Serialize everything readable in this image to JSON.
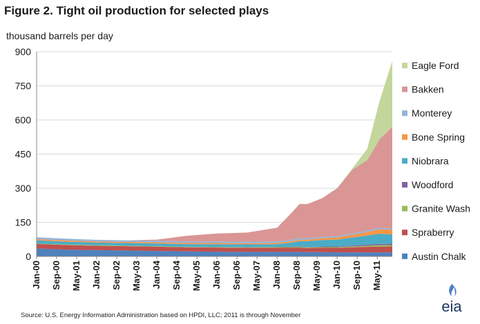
{
  "header": {
    "title": "Figure 2.  Tight oil production for selected plays",
    "yunit": "thousand barrels per day"
  },
  "footer": {
    "source": "Source:  U.S. Energy Information Administration based on HPDI, LLC; 2011 is through November",
    "logo_text": "eia"
  },
  "chart_data": {
    "type": "area",
    "stacked": true,
    "title": "Figure 2.  Tight oil production for selected plays",
    "xlabel": "",
    "ylabel": "thousand barrels per day",
    "ylim": [
      0,
      900
    ],
    "yticks": [
      0,
      150,
      300,
      450,
      600,
      750,
      900
    ],
    "xlim": [
      "2000-01",
      "2011-11"
    ],
    "xticks": [
      "Jan-00",
      "Sep-00",
      "May-01",
      "Jan-02",
      "Sep-02",
      "May-03",
      "Jan-04",
      "Sep-04",
      "May-05",
      "Jan-06",
      "Sep-06",
      "May-07",
      "Jan-08",
      "Sep-08",
      "May-09",
      "Jan-10",
      "Sep-10",
      "May-11"
    ],
    "grid": "horizontal",
    "legend_position": "right",
    "x": [
      "2000-01",
      "2001-01",
      "2002-01",
      "2003-01",
      "2004-01",
      "2005-01",
      "2006-01",
      "2007-01",
      "2008-01",
      "2008-07",
      "2008-10",
      "2009-01",
      "2009-07",
      "2010-01",
      "2010-07",
      "2011-01",
      "2011-06",
      "2011-11"
    ],
    "series": [
      {
        "name": "Austin Chalk",
        "color": "#4f81bd",
        "values": [
          35,
          30,
          28,
          26,
          24,
          22,
          21,
          20,
          20,
          20,
          20,
          19,
          19,
          18,
          18,
          18,
          18,
          18
        ]
      },
      {
        "name": "Spraberry",
        "color": "#c0504d",
        "values": [
          20,
          20,
          19,
          19,
          19,
          18,
          18,
          18,
          18,
          18,
          18,
          18,
          19,
          20,
          22,
          24,
          25,
          26
        ]
      },
      {
        "name": "Granite Wash",
        "color": "#9bbb59",
        "values": [
          2,
          2,
          2,
          2,
          2,
          2,
          2,
          2,
          3,
          3,
          3,
          3,
          3,
          3,
          4,
          5,
          6,
          6
        ]
      },
      {
        "name": "Woodford",
        "color": "#8064a2",
        "values": [
          0,
          0,
          0,
          0,
          0,
          0,
          1,
          1,
          1,
          2,
          2,
          2,
          3,
          3,
          4,
          5,
          6,
          6
        ]
      },
      {
        "name": "Niobrara",
        "color": "#4bacc6",
        "values": [
          14,
          13,
          12,
          12,
          12,
          12,
          12,
          12,
          12,
          18,
          25,
          25,
          28,
          30,
          35,
          40,
          45,
          40
        ]
      },
      {
        "name": "Bone Spring",
        "color": "#f79646",
        "values": [
          5,
          5,
          5,
          5,
          5,
          5,
          5,
          5,
          5,
          6,
          6,
          7,
          8,
          10,
          12,
          15,
          20,
          22
        ]
      },
      {
        "name": "Monterey",
        "color": "#95b3d7",
        "values": [
          8,
          8,
          7,
          7,
          7,
          7,
          7,
          7,
          7,
          7,
          7,
          6,
          6,
          6,
          6,
          6,
          6,
          6
        ]
      },
      {
        "name": "Bakken",
        "color": "#d99694",
        "values": [
          0,
          0,
          0,
          0,
          5,
          25,
          35,
          40,
          60,
          120,
          150,
          150,
          170,
          210,
          280,
          310,
          390,
          445
        ]
      },
      {
        "name": "Eagle Ford",
        "color": "#c3d69b",
        "values": [
          0,
          0,
          0,
          0,
          0,
          0,
          0,
          0,
          0,
          0,
          0,
          0,
          0,
          0,
          5,
          50,
          170,
          290
        ]
      }
    ]
  }
}
